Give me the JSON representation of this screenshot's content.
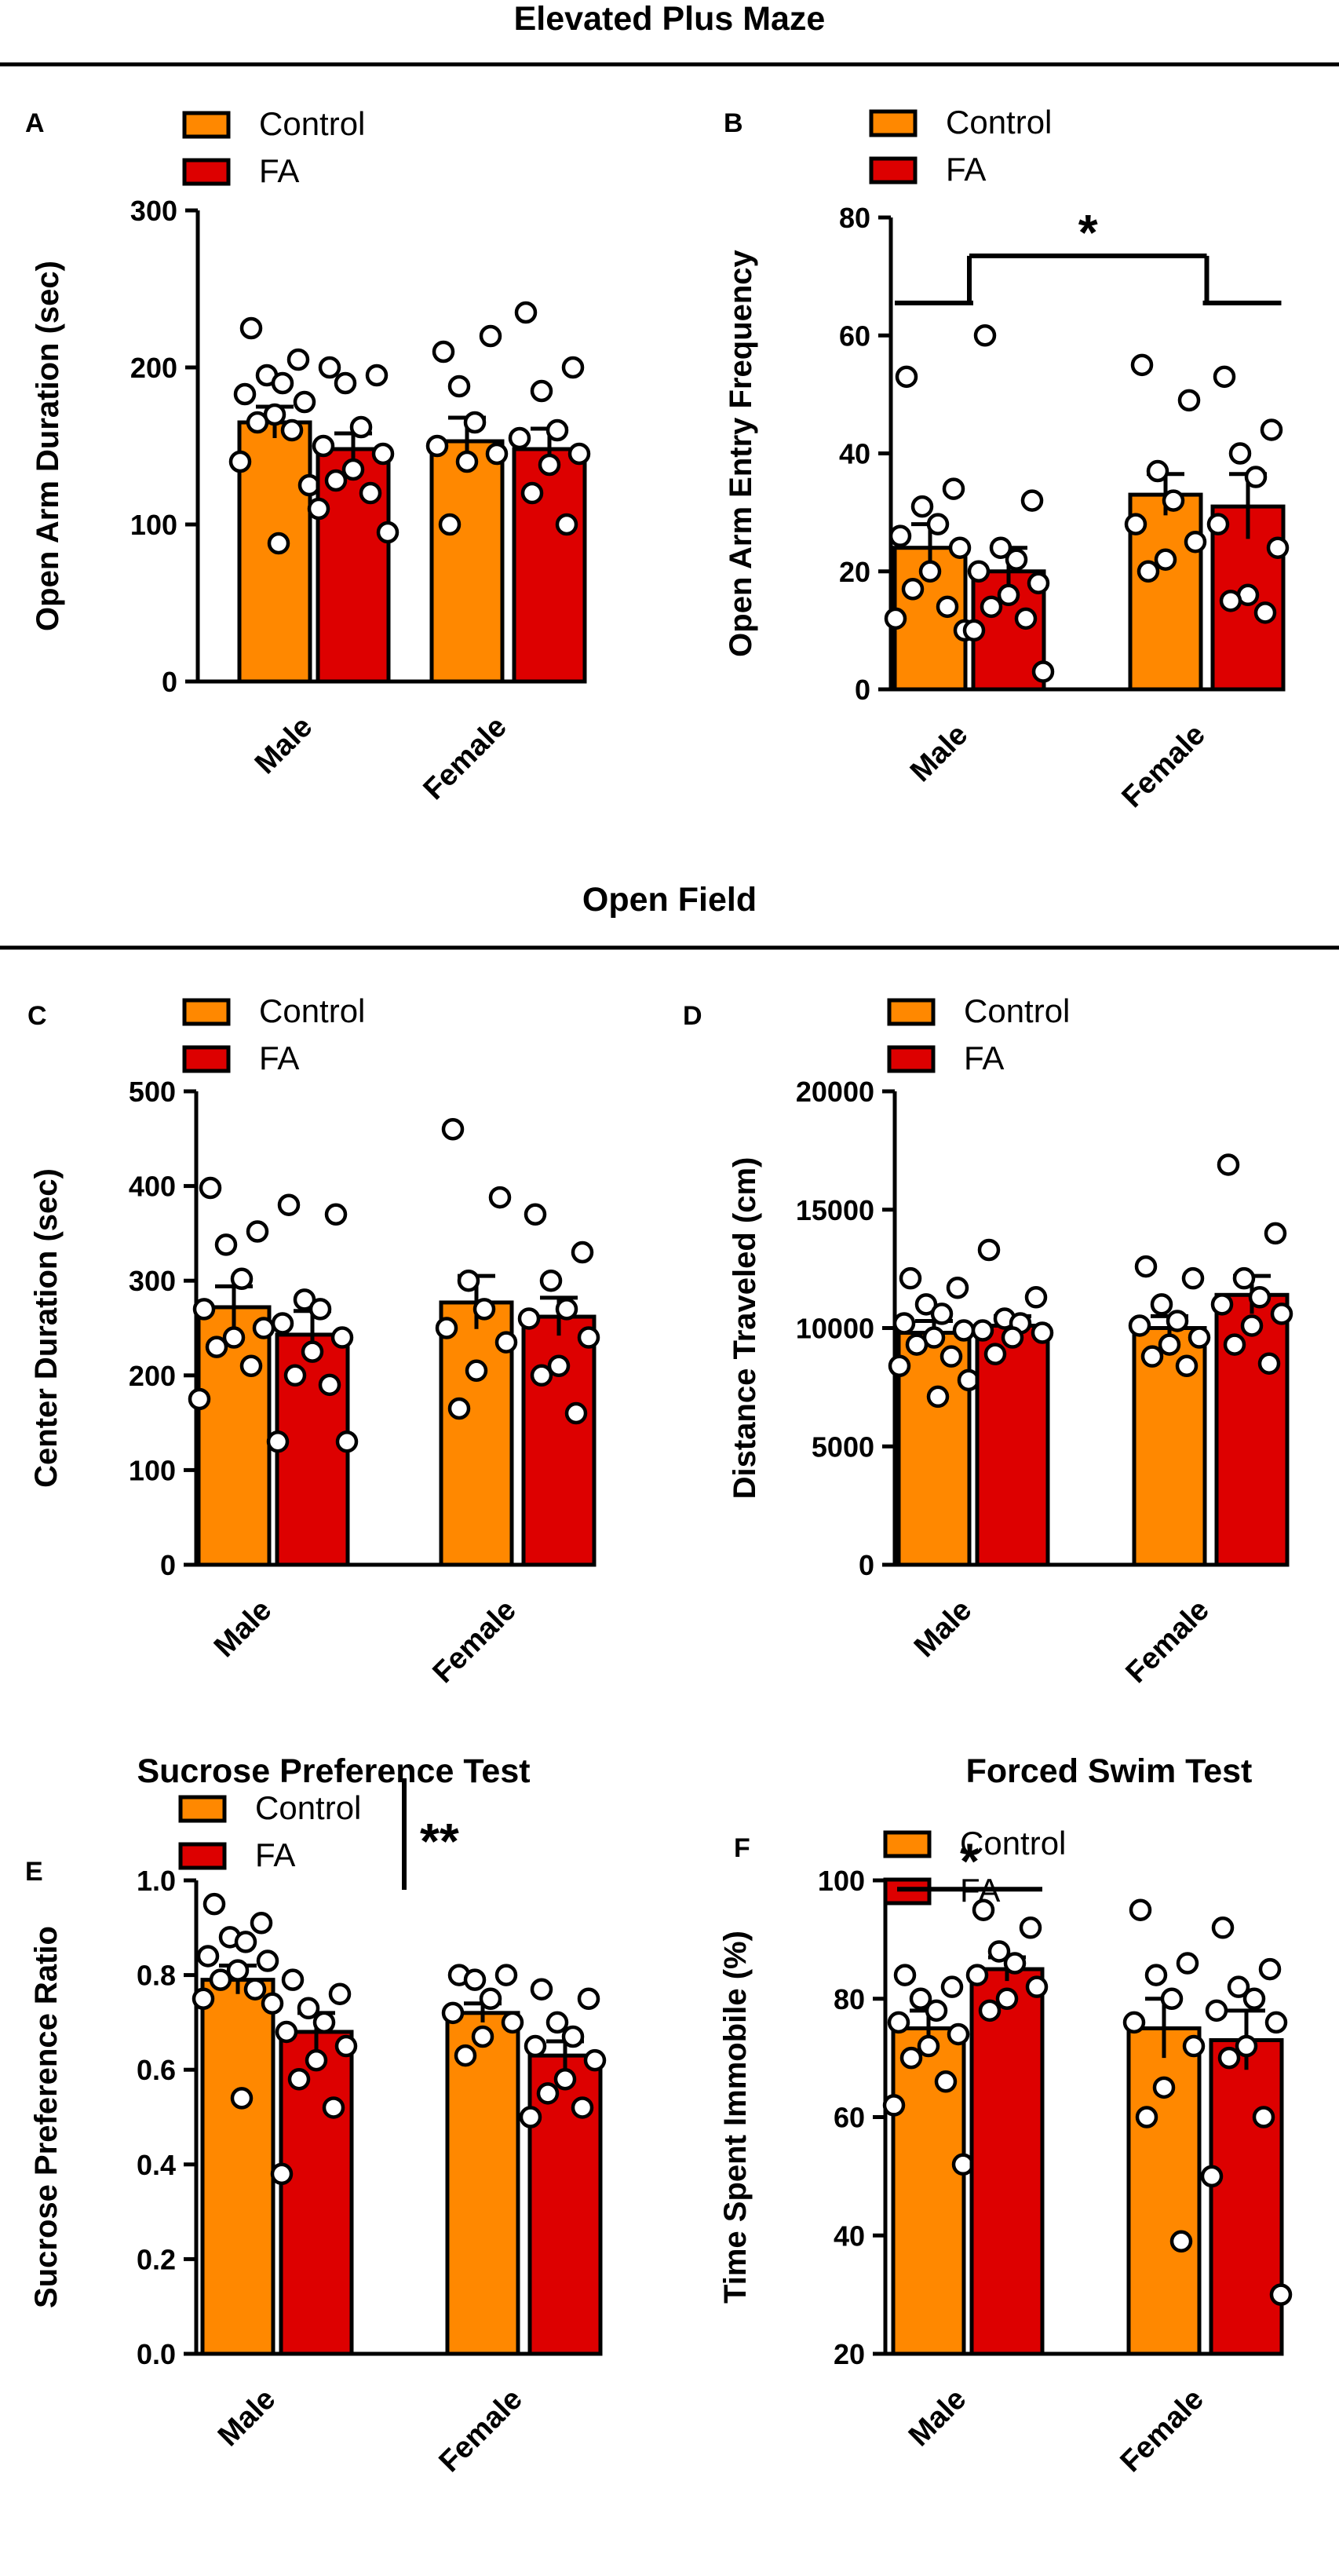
{
  "sections": {
    "epm": "Elevated Plus Maze",
    "of": "Open Field"
  },
  "colors": {
    "control": "#ff8800",
    "fa": "#dd0000",
    "ink": "#000000",
    "dot_fill": "#ffffff"
  },
  "legend": {
    "control": "Control",
    "fa": "FA"
  },
  "chart_data": [
    {
      "id": "A",
      "type": "bar",
      "title": "Elevated Plus Maze",
      "ylabel": "Open Arm Duration (sec)",
      "ylim": [
        0,
        300
      ],
      "yticks": [
        "0",
        "100",
        "200",
        "300"
      ],
      "categories": [
        "Male",
        "Female"
      ],
      "series": [
        {
          "name": "Control",
          "values": [
            165,
            153
          ],
          "sem": [
            10,
            15
          ],
          "points": [
            [
              225,
              205,
              195,
              190,
              183,
              178,
              170,
              165,
              160,
              140,
              125,
              88
            ],
            [
              210,
              220,
              188,
              165,
              150,
              145,
              140,
              100
            ]
          ]
        },
        {
          "name": "FA",
          "values": [
            148,
            148
          ],
          "sem": [
            10,
            13
          ],
          "points": [
            [
              200,
              195,
              190,
              162,
              150,
              145,
              135,
              128,
              120,
              110,
              95
            ],
            [
              235,
              200,
              185,
              160,
              155,
              145,
              138,
              120,
              100
            ]
          ]
        }
      ],
      "significance": []
    },
    {
      "id": "B",
      "type": "bar",
      "title": "Elevated Plus Maze",
      "ylabel": "Open Arm Entry Frequency",
      "ylim": [
        0,
        80
      ],
      "yticks": [
        "0",
        "20",
        "40",
        "60",
        "80"
      ],
      "categories": [
        "Male",
        "Female"
      ],
      "series": [
        {
          "name": "Control",
          "values": [
            24,
            33
          ],
          "sem": [
            4,
            3.5
          ],
          "points": [
            [
              53,
              34,
              31,
              28,
              26,
              24,
              20,
              17,
              14,
              12,
              10
            ],
            [
              55,
              49,
              37,
              32,
              28,
              25,
              22,
              20
            ]
          ]
        },
        {
          "name": "FA",
          "values": [
            20,
            31
          ],
          "sem": [
            4,
            5.5
          ],
          "points": [
            [
              60,
              32,
              24,
              22,
              20,
              18,
              16,
              14,
              12,
              10,
              3
            ],
            [
              53,
              44,
              40,
              36,
              28,
              24,
              16,
              15,
              13
            ]
          ]
        }
      ],
      "significance": [
        {
          "type": "bracket-groups",
          "label": "*"
        }
      ]
    },
    {
      "id": "C",
      "type": "bar",
      "title": "Open Field",
      "ylabel": "Center Duration (sec)",
      "ylim": [
        0,
        500
      ],
      "yticks": [
        "0",
        "100",
        "200",
        "300",
        "400",
        "500"
      ],
      "categories": [
        "Male",
        "Female"
      ],
      "series": [
        {
          "name": "Control",
          "values": [
            272,
            277
          ],
          "sem": [
            22,
            28
          ],
          "points": [
            [
              398,
              352,
              338,
              302,
              270,
              250,
              240,
              230,
              210,
              175
            ],
            [
              460,
              388,
              300,
              270,
              250,
              235,
              205,
              165
            ]
          ]
        },
        {
          "name": "FA",
          "values": [
            243,
            262
          ],
          "sem": [
            25,
            20
          ],
          "points": [
            [
              380,
              370,
              280,
              270,
              255,
              240,
              225,
              200,
              190,
              130,
              130
            ],
            [
              370,
              330,
              300,
              270,
              260,
              240,
              210,
              200,
              160
            ]
          ]
        }
      ],
      "significance": []
    },
    {
      "id": "D",
      "type": "bar",
      "title": "Open Field",
      "ylabel": "Distance Traveled (cm)",
      "ylim": [
        0,
        20000
      ],
      "yticks": [
        "0",
        "5000",
        "10000",
        "15000",
        "20000"
      ],
      "categories": [
        "Male",
        "Female"
      ],
      "series": [
        {
          "name": "Control",
          "values": [
            9800,
            10000
          ],
          "sem": [
            500,
            500
          ],
          "points": [
            [
              12100,
              11700,
              11000,
              10600,
              10200,
              9900,
              9600,
              9300,
              8800,
              8400,
              7800,
              7100
            ],
            [
              12600,
              12100,
              11000,
              10300,
              10100,
              9600,
              9300,
              8800,
              8400
            ]
          ]
        },
        {
          "name": "FA",
          "values": [
            10100,
            11400
          ],
          "sem": [
            400,
            800
          ],
          "points": [
            [
              13300,
              11300,
              10400,
              10200,
              9900,
              9800,
              9600,
              8900
            ],
            [
              16900,
              14000,
              12100,
              11300,
              11000,
              10600,
              10100,
              9300,
              8500
            ]
          ]
        }
      ],
      "significance": []
    },
    {
      "id": "E",
      "type": "bar",
      "title": "Sucrose Preference Test",
      "ylabel": "Sucrose Preference Ratio",
      "ylim": [
        0,
        1.0
      ],
      "yticks": [
        "0.0",
        "0.2",
        "0.4",
        "0.6",
        "0.8",
        "1.0"
      ],
      "categories": [
        "Male",
        "Female"
      ],
      "series": [
        {
          "name": "Control",
          "values": [
            0.79,
            0.72
          ],
          "sem": [
            0.03,
            0.02
          ],
          "points": [
            [
              0.95,
              0.91,
              0.88,
              0.87,
              0.84,
              0.83,
              0.81,
              0.79,
              0.77,
              0.75,
              0.74,
              0.54
            ],
            [
              0.8,
              0.8,
              0.79,
              0.75,
              0.72,
              0.7,
              0.67,
              0.63
            ]
          ]
        },
        {
          "name": "FA",
          "values": [
            0.68,
            0.63
          ],
          "sem": [
            0.04,
            0.03
          ],
          "points": [
            [
              0.79,
              0.76,
              0.73,
              0.7,
              0.68,
              0.65,
              0.62,
              0.58,
              0.52,
              0.38
            ],
            [
              0.77,
              0.75,
              0.7,
              0.67,
              0.65,
              0.62,
              0.58,
              0.55,
              0.52,
              0.5
            ]
          ]
        }
      ],
      "significance": [
        {
          "type": "legend-bar",
          "label": "**"
        }
      ]
    },
    {
      "id": "F",
      "type": "bar",
      "title": "Forced Swim Test",
      "ylabel": "Time Spent Immobile (%)",
      "ylim": [
        20,
        100
      ],
      "yticks": [
        "20",
        "40",
        "60",
        "80",
        "100"
      ],
      "categories": [
        "Male",
        "Female"
      ],
      "series": [
        {
          "name": "Control",
          "values": [
            75,
            75
          ],
          "sem": [
            3,
            5
          ],
          "points": [
            [
              84,
              82,
              80,
              78,
              76,
              74,
              72,
              70,
              66,
              62,
              52
            ],
            [
              95,
              86,
              84,
              80,
              76,
              72,
              65,
              60,
              39
            ]
          ]
        },
        {
          "name": "FA",
          "values": [
            85,
            73
          ],
          "sem": [
            2,
            5
          ],
          "points": [
            [
              95,
              92,
              88,
              86,
              84,
              82,
              80,
              78
            ],
            [
              92,
              85,
              82,
              80,
              78,
              76,
              72,
              70,
              60,
              50,
              30
            ]
          ]
        }
      ],
      "significance": [
        {
          "type": "bracket-within",
          "label": "*"
        }
      ]
    }
  ]
}
